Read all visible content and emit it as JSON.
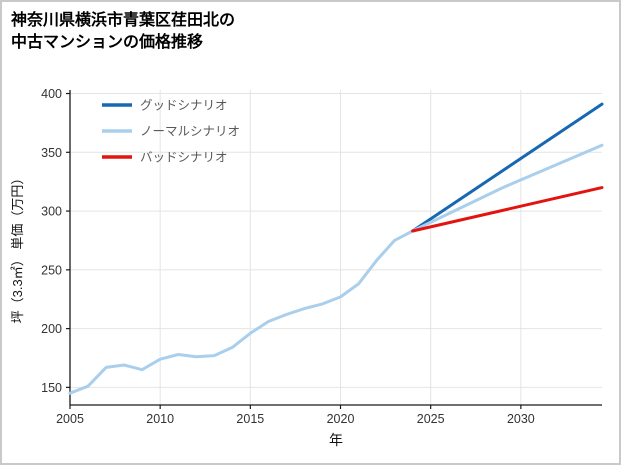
{
  "page": {
    "background": "#ffffff",
    "border_color": "#c9c9c9"
  },
  "header": {
    "title_line1": "神奈川県横浜市青葉区荏田北の",
    "title_line2": "中古マンションの価格推移"
  },
  "chart_data": {
    "type": "line",
    "title": "神奈川県横浜市青葉区荏田北の中古マンションの価格推移",
    "xlabel": "年",
    "ylabel": "坪（3.3㎡） 単価（万円）",
    "xlim": [
      2005,
      2034.5
    ],
    "ylim": [
      135,
      403
    ],
    "xticks": [
      2005,
      2010,
      2015,
      2020,
      2025,
      2030
    ],
    "yticks": [
      150,
      200,
      250,
      300,
      350,
      400
    ],
    "grid": true,
    "grid_color": "#e4e4e4",
    "axis_color": "#1a1a1a",
    "tick_label_color": "#333333",
    "legend_position": "top-left",
    "legend_text_color": "#595959",
    "series": [
      {
        "name": "グッドシナリオ",
        "color": "#1668b2",
        "width": 3,
        "x": [
          2024,
          2034.5
        ],
        "y": [
          283,
          391
        ]
      },
      {
        "name": "ノーマルシナリオ",
        "color": "#a9cfec",
        "width": 3,
        "x": [
          2005,
          2006,
          2007,
          2008,
          2009,
          2010,
          2011,
          2012,
          2013,
          2014,
          2015,
          2016,
          2017,
          2018,
          2019,
          2020,
          2021,
          2022,
          2023,
          2024,
          2029,
          2034.5
        ],
        "y": [
          145,
          151,
          167,
          169,
          165,
          174,
          178,
          176,
          177,
          184,
          196,
          206,
          212,
          217,
          221,
          227,
          238,
          258,
          275,
          283,
          320,
          356
        ]
      },
      {
        "name": "バッドシナリオ",
        "color": "#e3140f",
        "width": 3,
        "x": [
          2024,
          2034.5
        ],
        "y": [
          283,
          320
        ]
      }
    ]
  }
}
